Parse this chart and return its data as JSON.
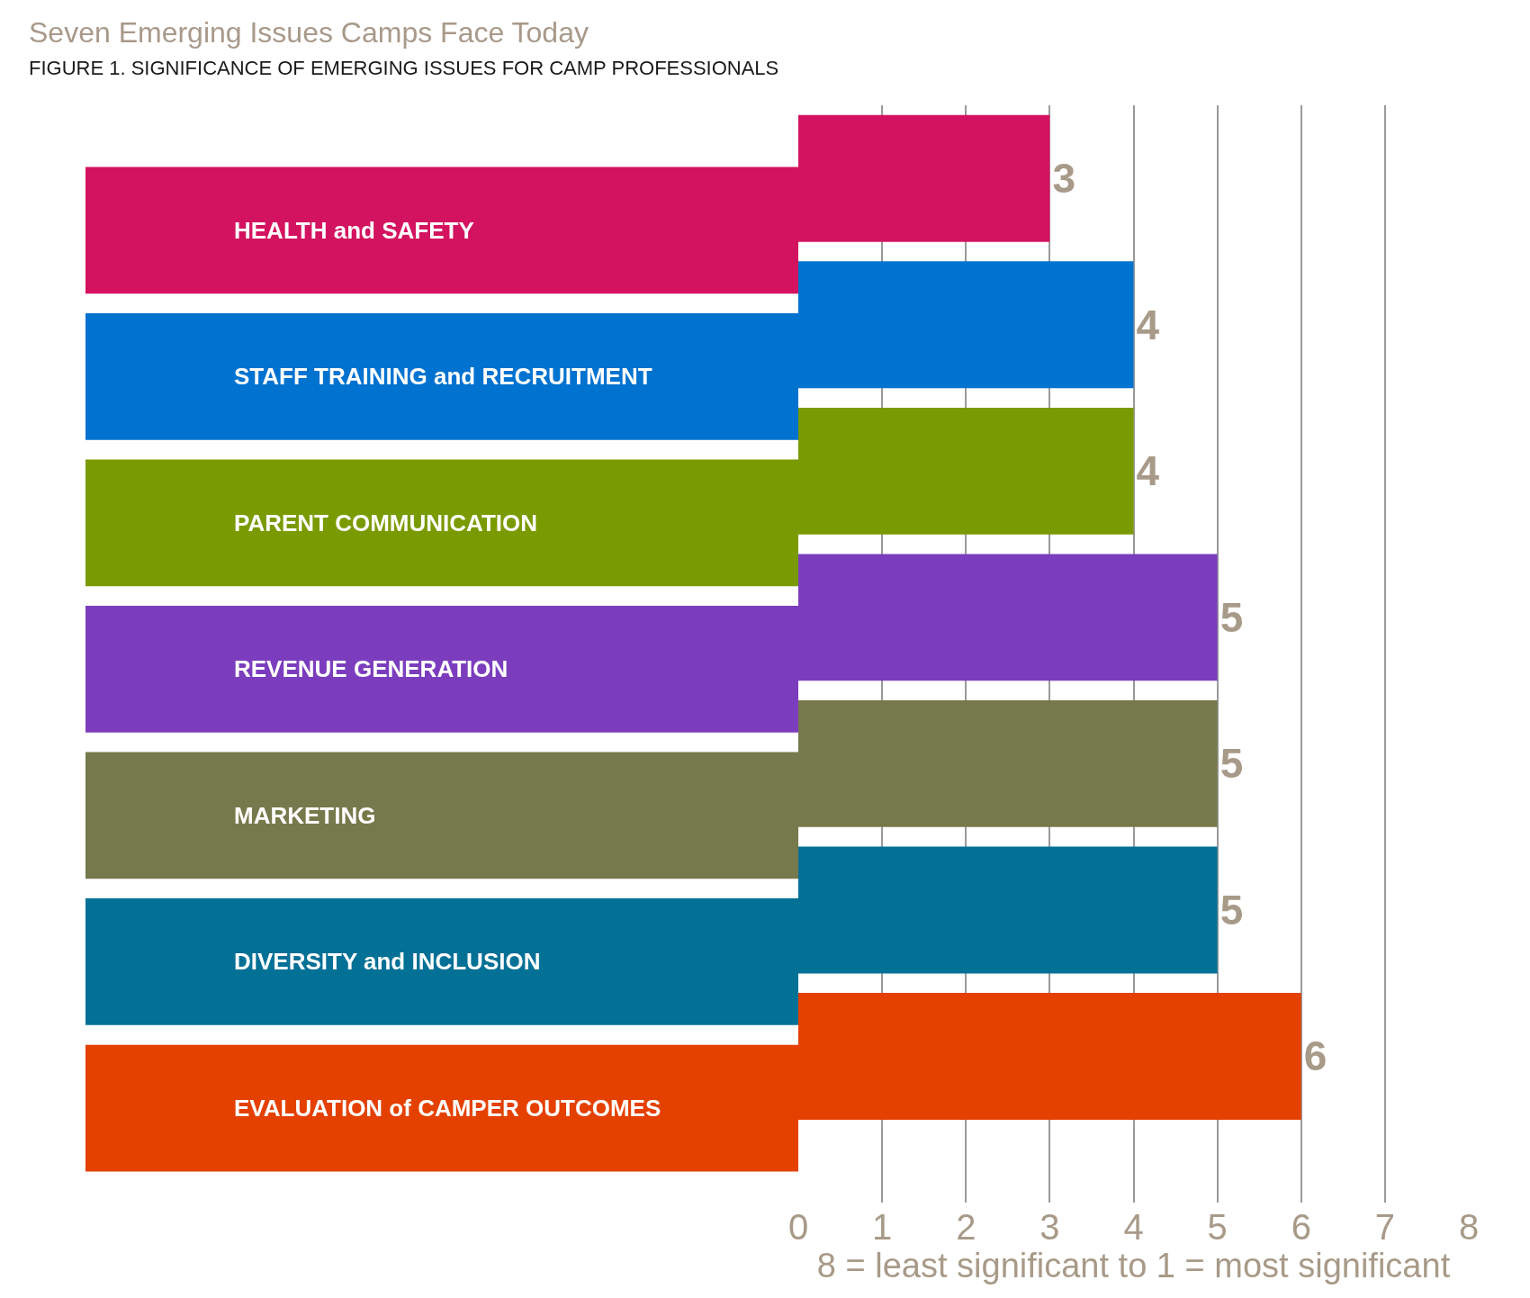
{
  "chart_data": {
    "type": "bar",
    "orientation": "horizontal",
    "title": "Seven Emerging Issues Camps Face Today",
    "subtitle": "FIGURE 1. SIGNIFICANCE OF EMERGING ISSUES FOR CAMP PROFESSIONALS",
    "xlabel": "8 = least significant to 1 = most significant",
    "categories": [
      "HEALTH and SAFETY",
      "STAFF TRAINING and RECRUITMENT",
      "PARENT COMMUNICATION",
      "REVENUE GENERATION",
      "MARKETING",
      "DIVERSITY and INCLUSION",
      "EVALUATION of CAMPER OUTCOMES"
    ],
    "values": [
      3,
      4,
      4,
      5,
      5,
      5,
      6
    ],
    "colors": [
      "#d41360",
      "#0072cf",
      "#7a9a01",
      "#7b3dbd",
      "#76794b",
      "#037096",
      "#e44000"
    ],
    "xlim": [
      0,
      8
    ],
    "xticks": [
      0,
      1,
      2,
      3,
      4,
      5,
      6,
      7,
      8
    ],
    "grid": "x",
    "data_labels": true
  }
}
